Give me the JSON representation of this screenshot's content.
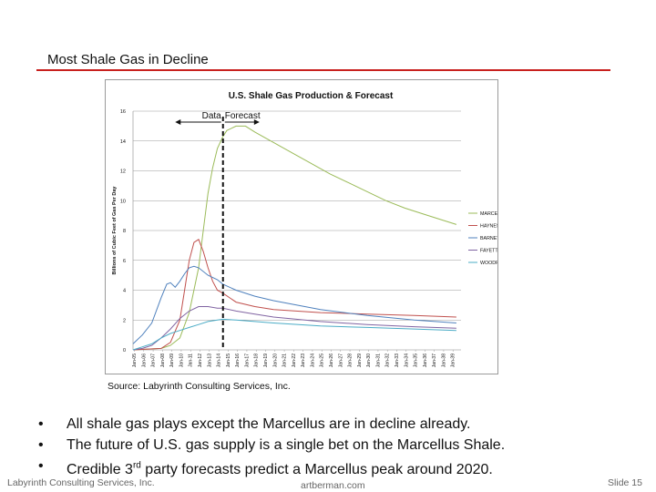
{
  "slide": {
    "title": "Most Shale Gas in Decline",
    "source": "Source:  Labyrinth Consulting Services, Inc.",
    "bullet_marker": "•",
    "bullets": [
      "All shale gas plays except the Marcellus are in decline already.",
      "The future of U.S. gas supply is a single bet on the Marcellus Shale.",
      "Credible 3rd party forecasts predict a Marcellus peak around 2020."
    ],
    "footer_left": "Labyrinth Consulting Services, Inc.",
    "footer_center": "artberman.com",
    "footer_right": "Slide 15",
    "accent_color": "#c8201e"
  },
  "chart_data": {
    "type": "line",
    "title": "U.S. Shale Gas Production & Forecast",
    "xlabel": "",
    "ylabel": "Billions of Cubic Feet of Gas Per Day",
    "ylim": [
      0,
      16
    ],
    "yticks": [
      0,
      2,
      4,
      6,
      8,
      10,
      12,
      14,
      16
    ],
    "grid": true,
    "legend_position": "right",
    "categories": [
      "Jan-05",
      "Jan-06",
      "Jan-07",
      "Jan-08",
      "Jan-09",
      "Jan-10",
      "Jan-11",
      "Jan-12",
      "Jan-13",
      "Jan-14",
      "Jan-15",
      "Jan-16",
      "Jan-17",
      "Jan-18",
      "Jan-19",
      "Jan-20",
      "Jan-21",
      "Jan-22",
      "Jan-23",
      "Jan-24",
      "Jan-25",
      "Jan-26",
      "Jan-27",
      "Jan-28",
      "Jan-29",
      "Jan-30",
      "Jan-31",
      "Jan-32",
      "Jan-33",
      "Jan-34",
      "Jan-35",
      "Jan-36",
      "Jan-37",
      "Jan-38",
      "Jan-39"
    ],
    "x_start": 2005,
    "annotations": {
      "data_label": "Data",
      "forecast_label": "Forecast",
      "divider_x": 2014.6,
      "data_arrow_from": 2009.5,
      "forecast_arrow_to": 2018.5
    },
    "series": [
      {
        "name": "MARCELLUS",
        "color": "#9bbb59",
        "points": [
          [
            2005,
            0
          ],
          [
            2008,
            0.1
          ],
          [
            2009,
            0.3
          ],
          [
            2010,
            0.8
          ],
          [
            2011,
            2.5
          ],
          [
            2012,
            5.5
          ],
          [
            2012.5,
            8
          ],
          [
            2013,
            10.5
          ],
          [
            2013.5,
            12.2
          ],
          [
            2014,
            13.5
          ],
          [
            2014.6,
            14.3
          ],
          [
            2015,
            14.7
          ],
          [
            2016,
            15
          ],
          [
            2017,
            15
          ],
          [
            2018,
            14.6
          ],
          [
            2020,
            13.9
          ],
          [
            2022,
            13.2
          ],
          [
            2024,
            12.5
          ],
          [
            2026,
            11.8
          ],
          [
            2028,
            11.2
          ],
          [
            2030,
            10.6
          ],
          [
            2032,
            10
          ],
          [
            2034,
            9.5
          ],
          [
            2036,
            9.1
          ],
          [
            2038,
            8.7
          ],
          [
            2039.5,
            8.4
          ]
        ]
      },
      {
        "name": "HAYNESVILLE",
        "color": "#c0504d",
        "points": [
          [
            2005,
            0
          ],
          [
            2008,
            0.1
          ],
          [
            2009,
            0.5
          ],
          [
            2010,
            2
          ],
          [
            2010.5,
            4
          ],
          [
            2011,
            6
          ],
          [
            2011.5,
            7.2
          ],
          [
            2012,
            7.4
          ],
          [
            2012.5,
            6.6
          ],
          [
            2013,
            5.5
          ],
          [
            2013.5,
            4.6
          ],
          [
            2014,
            4
          ],
          [
            2014.6,
            3.8
          ],
          [
            2016,
            3.2
          ],
          [
            2018,
            2.9
          ],
          [
            2020,
            2.7
          ],
          [
            2025,
            2.5
          ],
          [
            2030,
            2.4
          ],
          [
            2035,
            2.3
          ],
          [
            2039.5,
            2.2
          ]
        ]
      },
      {
        "name": "BARNETT",
        "color": "#4f81bd",
        "points": [
          [
            2005,
            0.4
          ],
          [
            2006,
            1
          ],
          [
            2007,
            1.8
          ],
          [
            2008,
            3.5
          ],
          [
            2008.6,
            4.4
          ],
          [
            2009,
            4.5
          ],
          [
            2009.5,
            4.2
          ],
          [
            2010,
            4.6
          ],
          [
            2010.5,
            5.1
          ],
          [
            2011,
            5.5
          ],
          [
            2011.5,
            5.6
          ],
          [
            2012,
            5.5
          ],
          [
            2013,
            5
          ],
          [
            2014,
            4.7
          ],
          [
            2014.6,
            4.4
          ],
          [
            2016,
            4
          ],
          [
            2018,
            3.6
          ],
          [
            2020,
            3.3
          ],
          [
            2025,
            2.7
          ],
          [
            2030,
            2.3
          ],
          [
            2035,
            2
          ],
          [
            2039.5,
            1.8
          ]
        ]
      },
      {
        "name": "FAYETTEVILLE",
        "color": "#8064a2",
        "points": [
          [
            2005,
            0
          ],
          [
            2006,
            0.1
          ],
          [
            2007,
            0.3
          ],
          [
            2008,
            0.8
          ],
          [
            2009,
            1.4
          ],
          [
            2010,
            2.1
          ],
          [
            2011,
            2.6
          ],
          [
            2012,
            2.9
          ],
          [
            2013,
            2.9
          ],
          [
            2014,
            2.8
          ],
          [
            2014.6,
            2.8
          ],
          [
            2016,
            2.6
          ],
          [
            2018,
            2.4
          ],
          [
            2020,
            2.2
          ],
          [
            2025,
            1.9
          ],
          [
            2030,
            1.7
          ],
          [
            2035,
            1.55
          ],
          [
            2039.5,
            1.45
          ]
        ]
      },
      {
        "name": "WOODFORD",
        "color": "#4bacc6",
        "points": [
          [
            2005,
            0
          ],
          [
            2006,
            0.2
          ],
          [
            2007,
            0.4
          ],
          [
            2008,
            0.8
          ],
          [
            2009,
            1.1
          ],
          [
            2010,
            1.3
          ],
          [
            2011,
            1.5
          ],
          [
            2012,
            1.7
          ],
          [
            2013,
            1.9
          ],
          [
            2014,
            2
          ],
          [
            2014.6,
            2.05
          ],
          [
            2016,
            2
          ],
          [
            2018,
            1.9
          ],
          [
            2020,
            1.8
          ],
          [
            2025,
            1.6
          ],
          [
            2030,
            1.5
          ],
          [
            2035,
            1.4
          ],
          [
            2039.5,
            1.3
          ]
        ]
      }
    ]
  }
}
